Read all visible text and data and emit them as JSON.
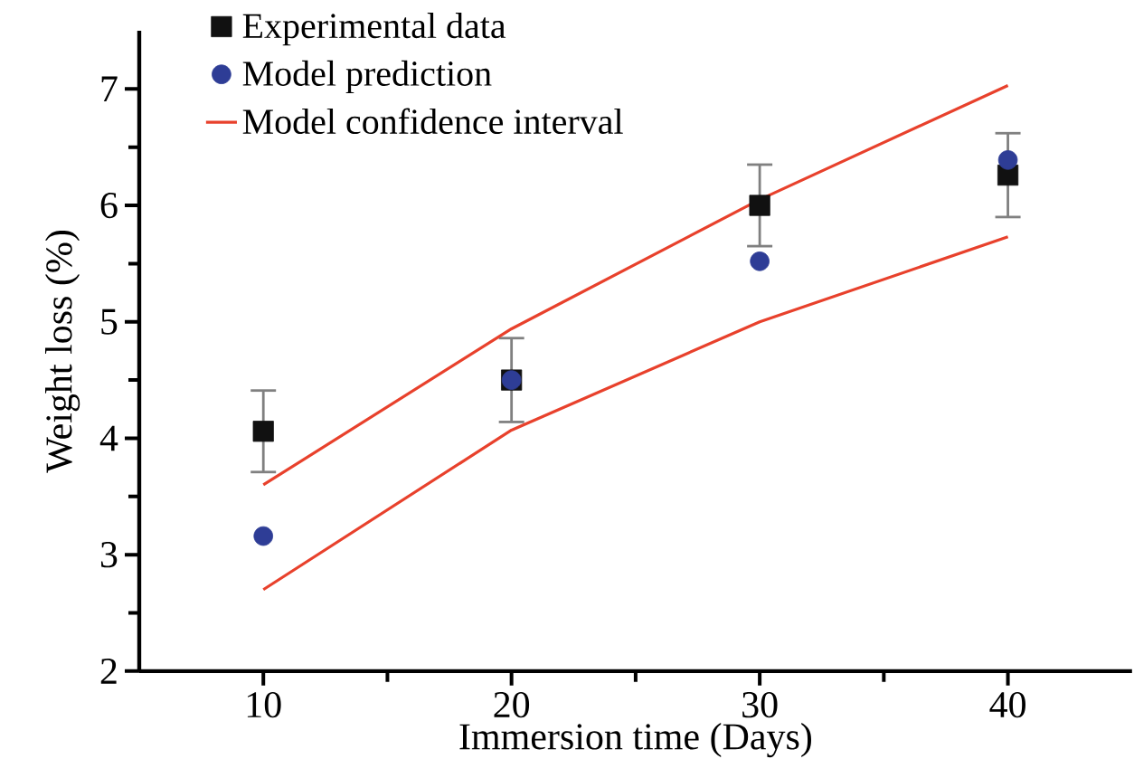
{
  "chart_data": {
    "type": "scatter",
    "xlabel": "Immersion time (Days)",
    "ylabel": "Weight loss (%)",
    "x": [
      10,
      20,
      30,
      40
    ],
    "xlim": [
      5,
      45
    ],
    "ylim": [
      2,
      7.5
    ],
    "xticks": [
      10,
      20,
      30,
      40
    ],
    "yticks": [
      2,
      3,
      4,
      5,
      6,
      7
    ],
    "legend": "top left",
    "series": [
      {
        "name": "Experimental data",
        "marker": "square",
        "color": "#111111",
        "values": [
          4.06,
          4.5,
          6.0,
          6.26
        ],
        "errors": [
          0.35,
          0.36,
          0.35,
          0.36
        ]
      },
      {
        "name": "Model prediction",
        "marker": "circle",
        "color": "#2e3d96",
        "values": [
          3.16,
          4.5,
          5.52,
          6.39
        ]
      },
      {
        "name": "Model confidence interval",
        "type": "line",
        "marker": "none",
        "color": "#e8412c",
        "values": [
          3.6,
          4.94,
          6.05,
          7.03
        ]
      },
      {
        "type": "line",
        "marker": "none",
        "color": "#e8412c",
        "values": [
          2.7,
          4.07,
          5.0,
          5.73
        ]
      }
    ]
  }
}
